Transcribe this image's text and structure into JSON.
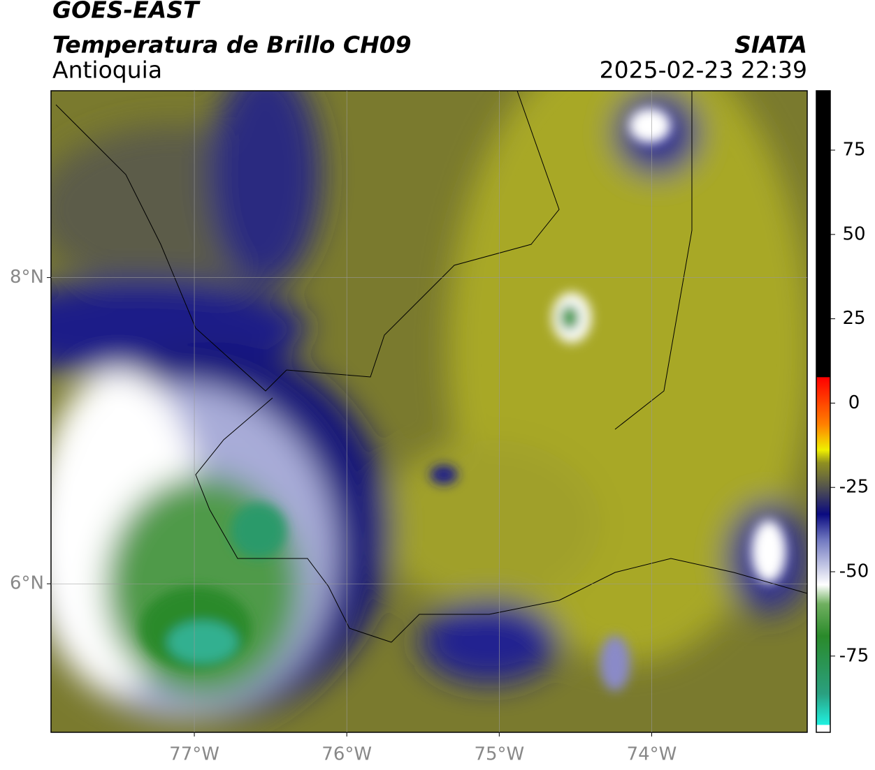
{
  "header": {
    "title": "GOES-EAST",
    "subtitle": "Temperatura de Brillo CH09",
    "region": "Antioquia",
    "source": "SIATA",
    "datetime": "2025-02-23 22:39"
  },
  "map": {
    "xlim": [
      -77.94,
      -72.98
    ],
    "ylim": [
      5.03,
      9.22
    ],
    "xticks": [
      {
        "value": -77,
        "label": "77°W"
      },
      {
        "value": -76,
        "label": "76°W"
      },
      {
        "value": -75,
        "label": "75°W"
      },
      {
        "value": -74,
        "label": "74°W"
      }
    ],
    "yticks": [
      {
        "value": 8,
        "label": "8°N"
      },
      {
        "value": 6,
        "label": "6°N"
      }
    ],
    "grid": true
  },
  "colorbar": {
    "clim": [
      -97.6,
      92.6
    ],
    "ticks": [
      75,
      50,
      25,
      0,
      -25,
      -50,
      -75
    ]
  }
}
